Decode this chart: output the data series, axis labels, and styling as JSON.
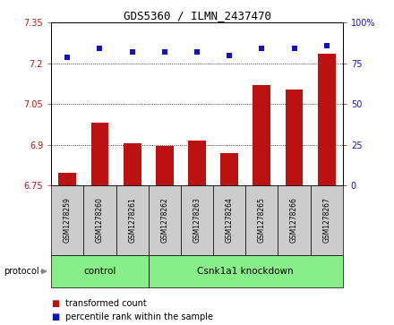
{
  "title": "GDS5360 / ILMN_2437470",
  "samples": [
    "GSM1278259",
    "GSM1278260",
    "GSM1278261",
    "GSM1278262",
    "GSM1278263",
    "GSM1278264",
    "GSM1278265",
    "GSM1278266",
    "GSM1278267"
  ],
  "bar_values": [
    6.795,
    6.98,
    6.905,
    6.895,
    6.915,
    6.868,
    7.12,
    7.105,
    7.235
  ],
  "scatter_values": [
    79,
    84,
    82,
    82,
    82,
    80,
    84,
    84,
    86
  ],
  "bar_color": "#bb1111",
  "scatter_color": "#1111cc",
  "ylim_left": [
    6.75,
    7.35
  ],
  "ylim_right": [
    0,
    100
  ],
  "yticks_left": [
    6.75,
    6.9,
    7.05,
    7.2,
    7.35
  ],
  "yticks_right": [
    0,
    25,
    50,
    75,
    100
  ],
  "ytick_labels_left": [
    "6.75",
    "6.9",
    "7.05",
    "7.2",
    "7.35"
  ],
  "ytick_labels_right": [
    "0",
    "25",
    "50",
    "75",
    "100%"
  ],
  "hlines": [
    6.9,
    7.05,
    7.2
  ],
  "groups": [
    {
      "label": "control",
      "start": 0,
      "end": 3
    },
    {
      "label": "Csnk1a1 knockdown",
      "start": 3,
      "end": 9
    }
  ],
  "protocol_label": "protocol",
  "legend_bar_label": "transformed count",
  "legend_scatter_label": "percentile rank within the sample",
  "bar_width": 0.55,
  "group_bg_color": "#88ee88",
  "sample_bg_color": "#cccccc"
}
